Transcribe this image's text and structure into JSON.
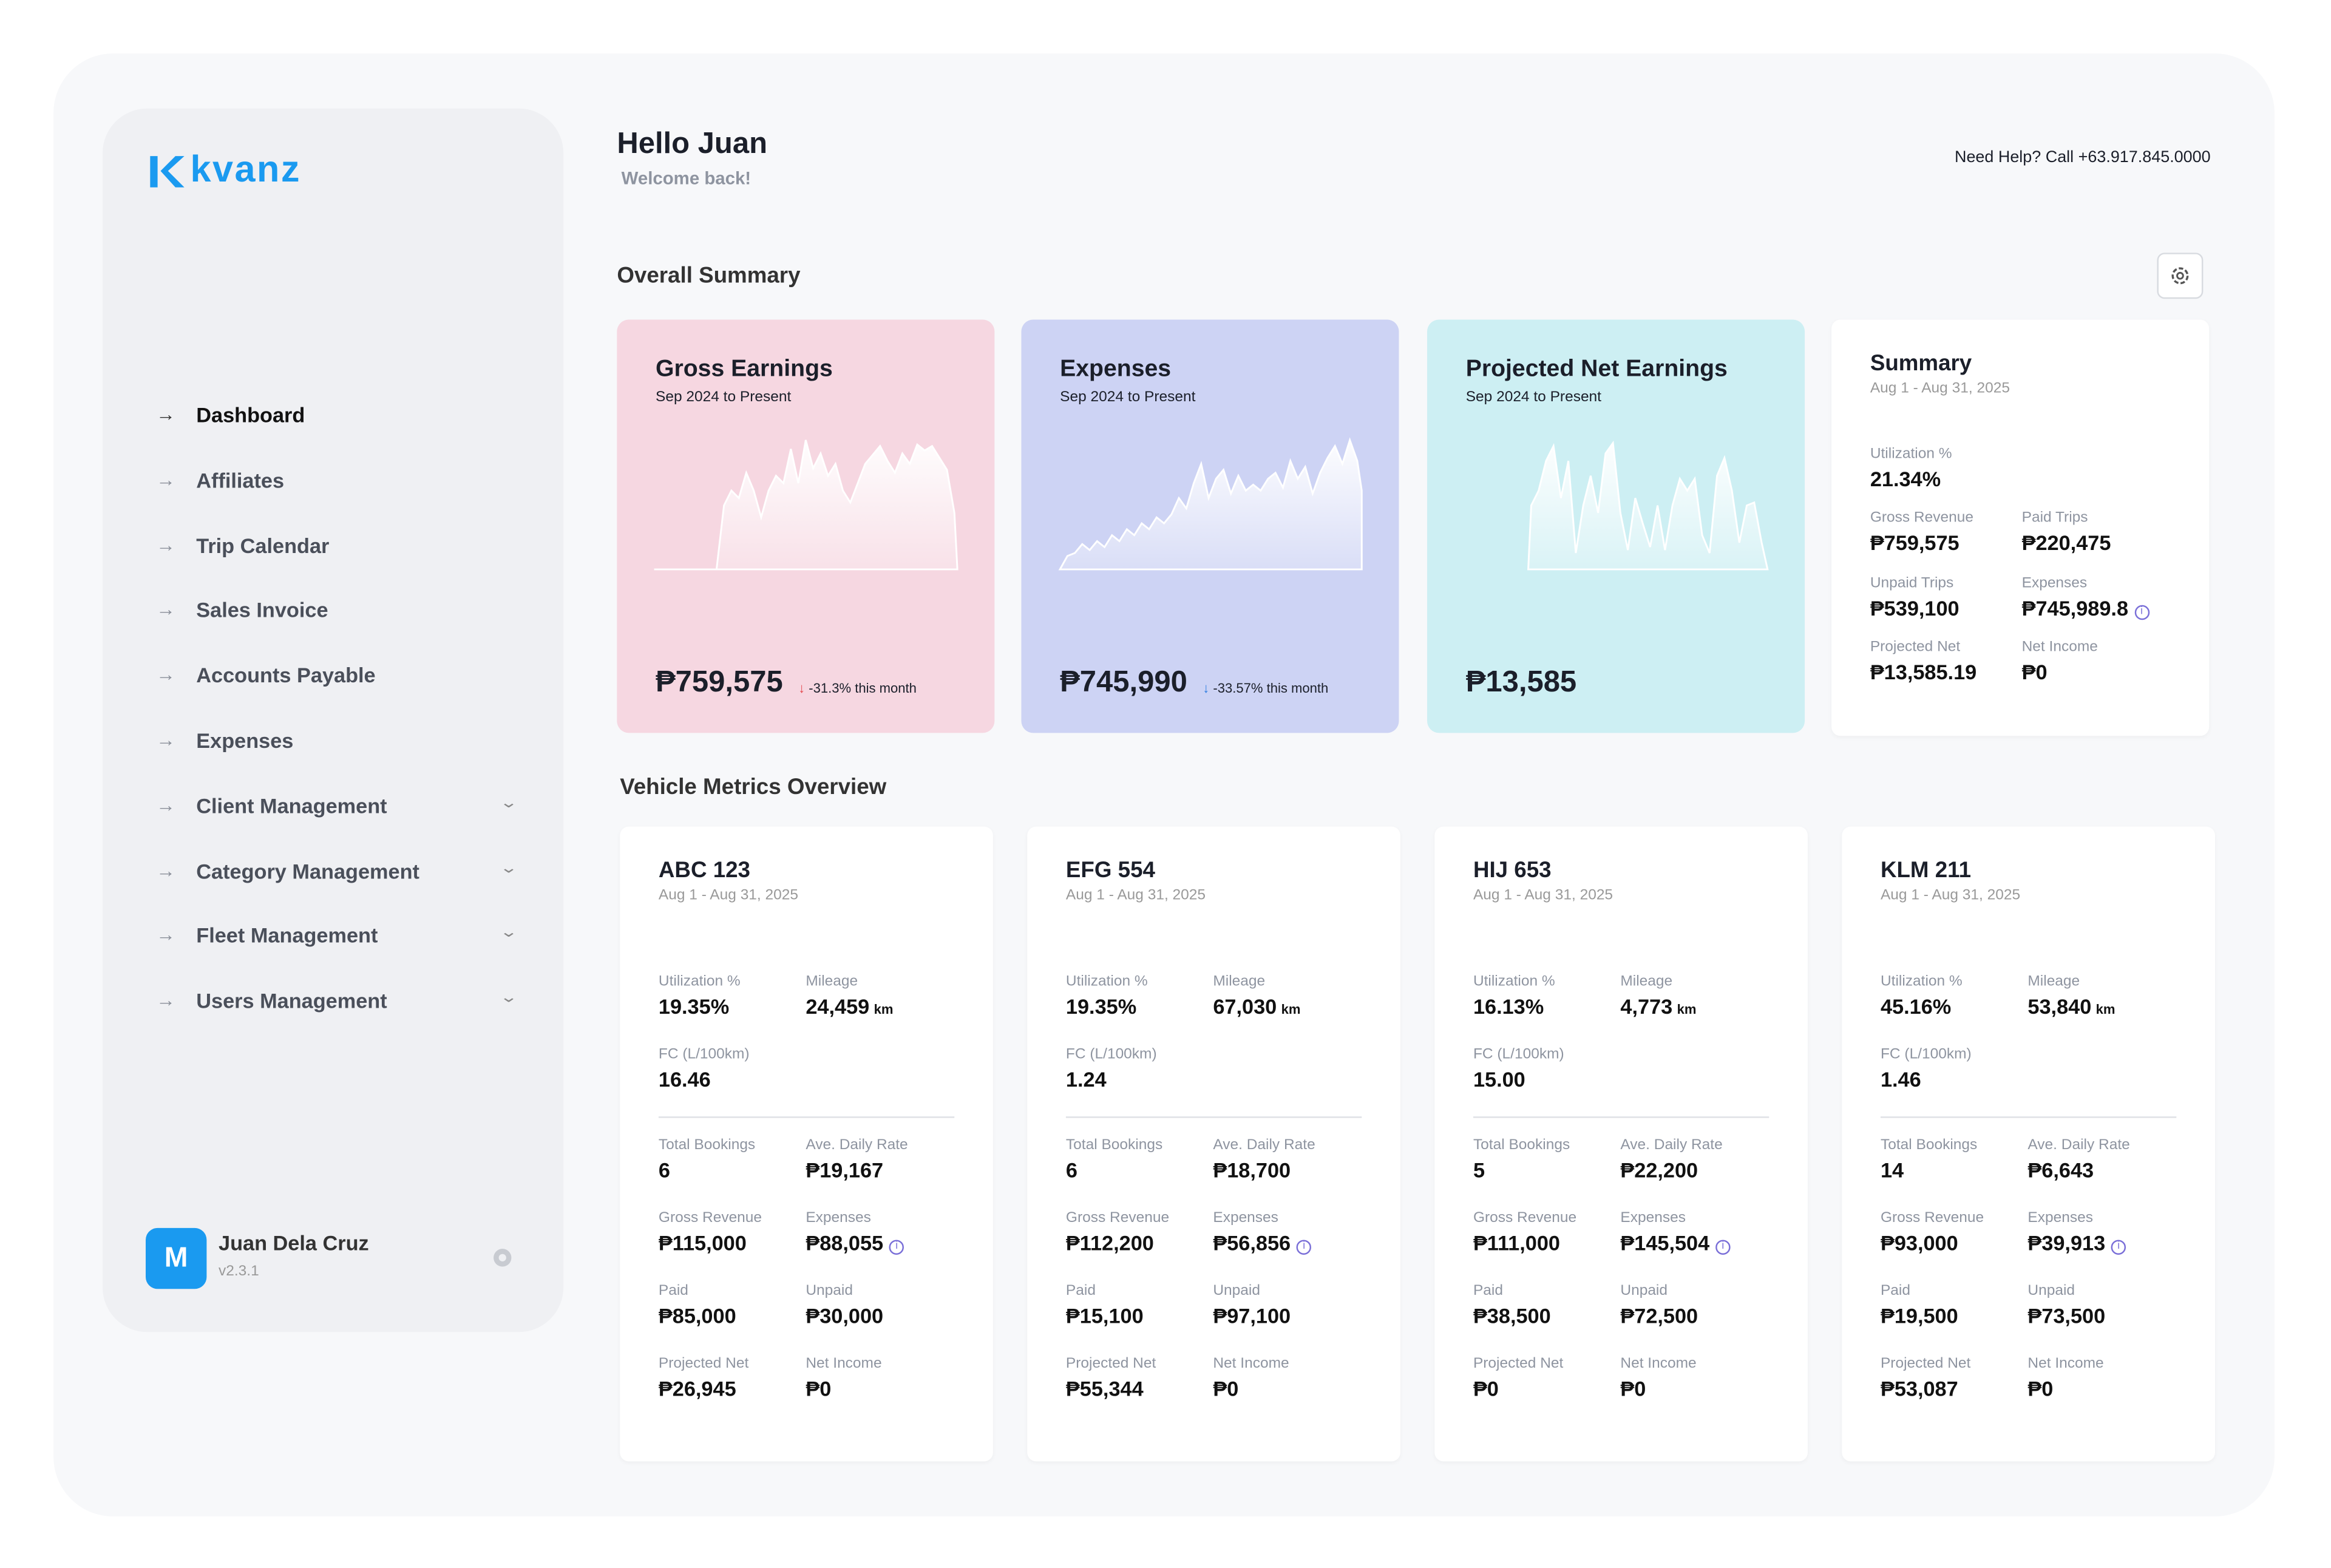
{
  "brand": "kvanz",
  "header": {
    "greeting": "Hello Juan",
    "subtitle": "Welcome back!",
    "help": "Need Help? Call +63.917.845.0000"
  },
  "nav": [
    {
      "label": "Dashboard",
      "active": true,
      "expandable": false
    },
    {
      "label": "Affiliates",
      "active": false,
      "expandable": false
    },
    {
      "label": "Trip Calendar",
      "active": false,
      "expandable": false
    },
    {
      "label": "Sales Invoice",
      "active": false,
      "expandable": false
    },
    {
      "label": "Accounts Payable",
      "active": false,
      "expandable": false
    },
    {
      "label": "Expenses",
      "active": false,
      "expandable": false
    },
    {
      "label": "Client Management",
      "active": false,
      "expandable": true
    },
    {
      "label": "Category Management",
      "active": false,
      "expandable": true
    },
    {
      "label": "Fleet Management",
      "active": false,
      "expandable": true
    },
    {
      "label": "Users Management",
      "active": false,
      "expandable": true
    }
  ],
  "user": {
    "avatar": "M",
    "name": "Juan Dela Cruz",
    "version": "v2.3.1"
  },
  "overall": {
    "title": "Overall Summary",
    "cards": [
      {
        "title": "Gross Earnings",
        "period": "Sep 2024 to Present",
        "amount": "₱759,575",
        "change": "-31.3% this month",
        "color": "#f6d7e1",
        "arrow_color": "#e5484d"
      },
      {
        "title": "Expenses",
        "period": "Sep 2024 to Present",
        "amount": "₱745,990",
        "change": "-33.57% this month",
        "color": "#cdd3f4",
        "arrow_color": "#2f7de1"
      },
      {
        "title": "Projected Net Earnings",
        "period": "Sep 2024 to Present",
        "amount": "₱13,585",
        "color": "#cdeff3"
      }
    ]
  },
  "summary": {
    "title": "Summary",
    "period": "Aug 1 - Aug 31, 2025",
    "rows": [
      [
        {
          "label": "Utilization %",
          "value": "21.34%"
        }
      ],
      [
        {
          "label": "Gross Revenue",
          "value": "₱759,575"
        },
        {
          "label": "Paid Trips",
          "value": "₱220,475"
        }
      ],
      [
        {
          "label": "Unpaid Trips",
          "value": "₱539,100"
        },
        {
          "label": "Expenses",
          "value": "₱745,989.8",
          "info": true
        }
      ],
      [
        {
          "label": "Projected Net",
          "value": "₱13,585.19"
        },
        {
          "label": "Net Income",
          "value": "₱0"
        }
      ]
    ]
  },
  "vehicles": {
    "title": "Vehicle Metrics Overview",
    "items": [
      {
        "name": "ABC 123",
        "period": "Aug 1 - Aug 31, 2025",
        "rows": [
          [
            {
              "label": "Utilization %",
              "value": "19.35%"
            },
            {
              "label": "Mileage",
              "value": "24,459",
              "unit": "km"
            }
          ],
          [
            {
              "label": "FC (L/100km)",
              "value": "16.46"
            }
          ],
          [
            {
              "label": "Total Bookings",
              "value": "6"
            },
            {
              "label": "Ave. Daily Rate",
              "value": "₱19,167"
            }
          ],
          [
            {
              "label": "Gross Revenue",
              "value": "₱115,000"
            },
            {
              "label": "Expenses",
              "value": "₱88,055",
              "info": true
            }
          ],
          [
            {
              "label": "Paid",
              "value": "₱85,000"
            },
            {
              "label": "Unpaid",
              "value": "₱30,000"
            }
          ],
          [
            {
              "label": "Projected Net",
              "value": "₱26,945"
            },
            {
              "label": "Net Income",
              "value": "₱0"
            }
          ]
        ]
      },
      {
        "name": "EFG 554",
        "period": "Aug 1 - Aug 31, 2025",
        "rows": [
          [
            {
              "label": "Utilization %",
              "value": "19.35%"
            },
            {
              "label": "Mileage",
              "value": "67,030",
              "unit": "km"
            }
          ],
          [
            {
              "label": "FC (L/100km)",
              "value": "1.24"
            }
          ],
          [
            {
              "label": "Total Bookings",
              "value": "6"
            },
            {
              "label": "Ave. Daily Rate",
              "value": "₱18,700"
            }
          ],
          [
            {
              "label": "Gross Revenue",
              "value": "₱112,200"
            },
            {
              "label": "Expenses",
              "value": "₱56,856",
              "info": true
            }
          ],
          [
            {
              "label": "Paid",
              "value": "₱15,100"
            },
            {
              "label": "Unpaid",
              "value": "₱97,100"
            }
          ],
          [
            {
              "label": "Projected Net",
              "value": "₱55,344"
            },
            {
              "label": "Net Income",
              "value": "₱0"
            }
          ]
        ]
      },
      {
        "name": "HIJ 653",
        "period": "Aug 1 - Aug 31, 2025",
        "rows": [
          [
            {
              "label": "Utilization %",
              "value": "16.13%"
            },
            {
              "label": "Mileage",
              "value": "4,773",
              "unit": "km"
            }
          ],
          [
            {
              "label": "FC (L/100km)",
              "value": "15.00"
            }
          ],
          [
            {
              "label": "Total Bookings",
              "value": "5"
            },
            {
              "label": "Ave. Daily Rate",
              "value": "₱22,200"
            }
          ],
          [
            {
              "label": "Gross Revenue",
              "value": "₱111,000"
            },
            {
              "label": "Expenses",
              "value": "₱145,504",
              "info": true
            }
          ],
          [
            {
              "label": "Paid",
              "value": "₱38,500"
            },
            {
              "label": "Unpaid",
              "value": "₱72,500"
            }
          ],
          [
            {
              "label": "Projected Net",
              "value": "₱0"
            },
            {
              "label": "Net Income",
              "value": "₱0"
            }
          ]
        ]
      },
      {
        "name": "KLM 211",
        "period": "Aug 1 - Aug 31, 2025",
        "rows": [
          [
            {
              "label": "Utilization %",
              "value": "45.16%"
            },
            {
              "label": "Mileage",
              "value": "53,840",
              "unit": "km"
            }
          ],
          [
            {
              "label": "FC (L/100km)",
              "value": "1.46"
            }
          ],
          [
            {
              "label": "Total Bookings",
              "value": "14"
            },
            {
              "label": "Ave. Daily Rate",
              "value": "₱6,643"
            }
          ],
          [
            {
              "label": "Gross Revenue",
              "value": "₱93,000"
            },
            {
              "label": "Expenses",
              "value": "₱39,913",
              "info": true
            }
          ],
          [
            {
              "label": "Paid",
              "value": "₱19,500"
            },
            {
              "label": "Unpaid",
              "value": "₱73,500"
            }
          ],
          [
            {
              "label": "Projected Net",
              "value": "₱53,087"
            },
            {
              "label": "Net Income",
              "value": "₱0"
            }
          ]
        ]
      }
    ]
  }
}
